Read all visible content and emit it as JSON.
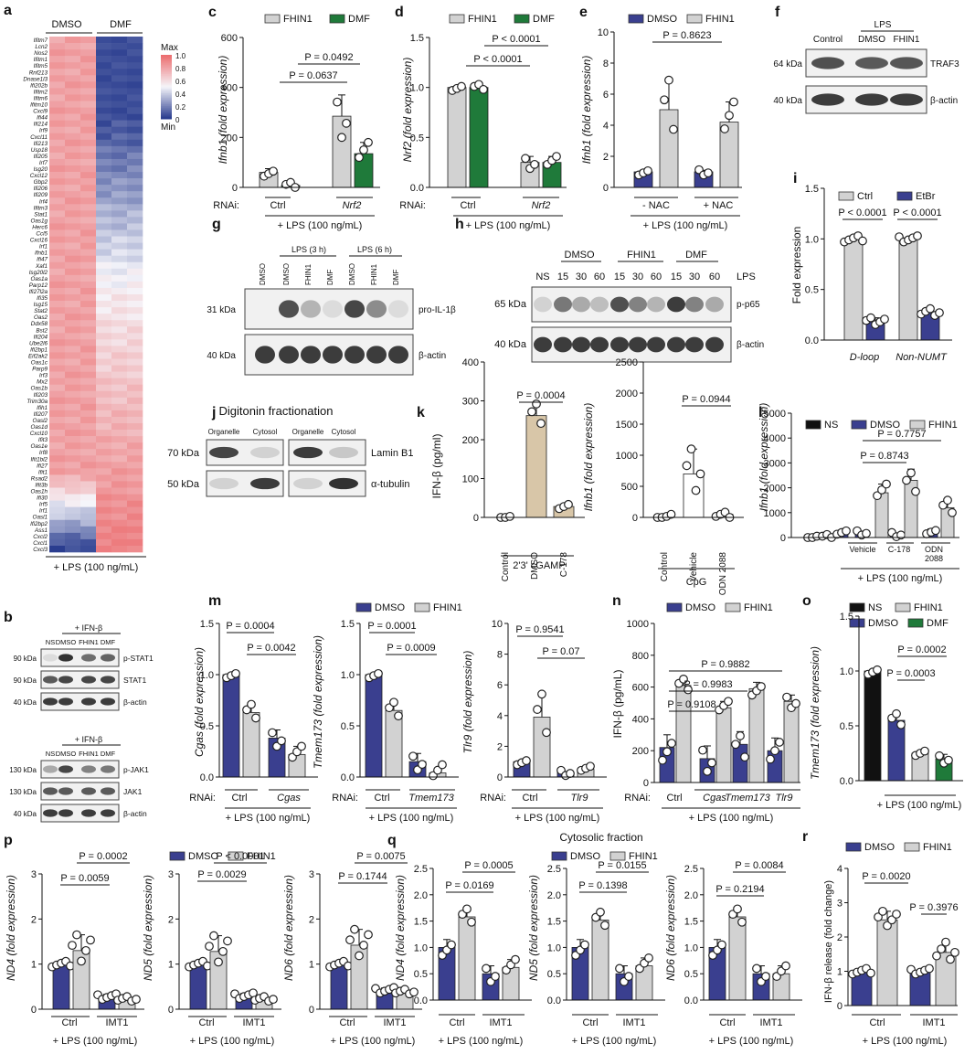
{
  "colors": {
    "navy": "#3a3f8f",
    "grey": "#d2d2d2",
    "green": "#1f7a3a",
    "tan": "#d8c6a8",
    "black": "#111111",
    "pink": "#f08080",
    "blue": "#2a3d8f"
  },
  "common": {
    "lps": "+ LPS (100 ng/mL)",
    "rnai": "RNAi:",
    "ctrl": "Ctrl",
    "imt1": "IMT1",
    "kda31": "31 kDa",
    "kda40": "40 kDa",
    "kda64": "64 kDa",
    "kda65": "65 kDa",
    "kda70": "70 kDa",
    "kda50": "50 kDa",
    "kda90": "90 kDa",
    "kda130": "130 kDa",
    "bactin": "β-actin"
  },
  "panel_labels": {
    "a": "a",
    "b": "b",
    "c": "c",
    "d": "d",
    "e": "e",
    "f": "f",
    "g": "g",
    "h": "h",
    "i": "i",
    "j": "j",
    "k": "k",
    "l": "l",
    "m": "m",
    "n": "n",
    "o": "o",
    "p": "p",
    "q": "q",
    "r": "r"
  },
  "heatmap": {
    "col_groups": [
      "DMSO",
      "DMF"
    ],
    "legend": {
      "max_label": "Max",
      "min_label": "Min",
      "ticks": [
        "1.0",
        "0.8",
        "0.6",
        "0.4",
        "0.2",
        "0"
      ]
    },
    "genes": [
      "Ifitm7",
      "Lcn2",
      "Nos2",
      "Ifitm1",
      "Ifitm5",
      "Rnf213",
      "Dnase1l3",
      "Ifi202b",
      "Ifitm2",
      "Ifitm6",
      "Ifitm10",
      "Cxcl9",
      "Ifi44",
      "Ifi214",
      "Irf9",
      "Cxcl11",
      "Ifi213",
      "Usp18",
      "Ifi205",
      "Irf7",
      "Isg20",
      "Cxcl12",
      "Gbp2",
      "Ifi206",
      "Ifi209",
      "Irf4",
      "Ifitm3",
      "Stat1",
      "Oas1g",
      "Herc6",
      "Ccl5",
      "Cxcl16",
      "Irf1",
      "Ifnb1",
      "Ifi47",
      "Xaf1",
      "Isg20l2",
      "Oas1a",
      "Parp12",
      "Ifi27l2a",
      "Ifi35",
      "Isg15",
      "Stat2",
      "Oas2",
      "Ddx58",
      "Bst2",
      "Ifi204",
      "Ube2l6",
      "Ifi2bp1",
      "Eif2ak2",
      "Oas1c",
      "Parp9",
      "Irf3",
      "Mx2",
      "Oas1b",
      "Ifi203",
      "Trim30a",
      "Ifih1",
      "Ifi207",
      "Oasl2",
      "Oas1d",
      "Cxcl10",
      "Ifit3",
      "Oas1e",
      "Irf8",
      "Ifit1bl2",
      "Ifi27",
      "Ifit1",
      "Rsad2",
      "Ifit3b",
      "Oas1h",
      "Ifi30",
      "Irf5",
      "Irf1",
      "Oasl1",
      "Ifi2bp2",
      "Ass1",
      "Cxcl2",
      "Cxcl1",
      "Cxcl3"
    ],
    "footer": "+ LPS (100 ng/mL)"
  },
  "blot_b": {
    "top_header": "+ IFN-β",
    "top_lanes": [
      "NS",
      "DMSO",
      "FHIN1",
      "DMF"
    ],
    "top_rows": [
      {
        "kda": "90 kDa",
        "label": "p-STAT1"
      },
      {
        "kda": "90 kDa",
        "label": "STAT1"
      },
      {
        "kda": "40 kDa",
        "label": "β-actin"
      }
    ],
    "bot_header": "+ IFN-β",
    "bot_lanes": [
      "NS",
      "DMSO",
      "FHIN1",
      "DMF"
    ],
    "bot_rows": [
      {
        "kda": "130 kDa",
        "label": "p-JAK1"
      },
      {
        "kda": "130 kDa",
        "label": "JAK1"
      },
      {
        "kda": "40 kDa",
        "label": "β-actin"
      }
    ]
  },
  "blot_f": {
    "header": "LPS",
    "lanes": [
      "Control",
      "DMSO",
      "FHIN1"
    ],
    "rows": [
      {
        "kda": "64 kDa",
        "label": "TRAF3"
      },
      {
        "kda": "40 kDa",
        "label": "β-actin"
      }
    ]
  },
  "blot_g": {
    "group_labels": [
      "LPS (3 h)",
      "LPS (6 h)"
    ],
    "lanes": [
      "DMSO",
      "DMSO",
      "FHIN1",
      "DMF",
      "DMSO",
      "FHIN1",
      "DMF"
    ],
    "rows": [
      {
        "kda": "31 kDa",
        "label": "pro-IL-1β"
      },
      {
        "kda": "40 kDa",
        "label": "β-actin"
      }
    ]
  },
  "blot_h": {
    "groups": [
      "DMSO",
      "FHIN1",
      "DMF"
    ],
    "lanes": [
      "NS",
      "15",
      "30",
      "60",
      "15",
      "30",
      "60",
      "15",
      "30",
      "60"
    ],
    "lps_label": "LPS",
    "rows": [
      {
        "kda": "65 kDa",
        "label": "p-p65"
      },
      {
        "kda": "40 kDa",
        "label": "β-actin"
      }
    ]
  },
  "blot_j": {
    "title": "Digitonin fractionation",
    "lanes": [
      "Organelle",
      "Cytosol",
      "Organelle",
      "Cytosol"
    ],
    "rows": [
      {
        "kda": "70 kDa",
        "label": "Lamin B1"
      },
      {
        "kda": "50 kDa",
        "label": "α-tubulin"
      }
    ]
  },
  "chart_data": [
    {
      "id": "c",
      "type": "bar",
      "ylabel": "Ifnb1 (fold expression)",
      "ylim": [
        0,
        600
      ],
      "yticks": [
        0,
        200,
        400,
        600
      ],
      "legend": [
        "FHIN1",
        "DMF"
      ],
      "groups": [
        "Ctrl",
        "Nrf2"
      ],
      "series": [
        {
          "name": "FHIN1",
          "values": [
            60,
            285
          ]
        },
        {
          "name": "DMF",
          "values": [
            8,
            135
          ]
        }
      ],
      "pvalues": [
        "P = 0.0637",
        "P = 0.0492"
      ]
    },
    {
      "id": "d",
      "type": "bar",
      "ylabel": "Nrf2 (fold expression)",
      "ylim": [
        0,
        1.5
      ],
      "yticks": [
        0.0,
        0.5,
        1.0,
        1.5
      ],
      "legend": [
        "FHIN1",
        "DMF"
      ],
      "groups": [
        "Ctrl",
        "Nrf2"
      ],
      "series": [
        {
          "name": "FHIN1",
          "values": [
            1.0,
            0.25
          ]
        },
        {
          "name": "DMF",
          "values": [
            1.0,
            0.25
          ]
        }
      ],
      "pvalues": [
        "P < 0.0001",
        "P < 0.0001"
      ]
    },
    {
      "id": "e",
      "type": "bar",
      "ylabel": "Ifnb1 (fold expression)",
      "ylim": [
        0,
        10
      ],
      "yticks": [
        0,
        2,
        4,
        6,
        8,
        10
      ],
      "legend": [
        "DMSO",
        "FHIN1"
      ],
      "groups": [
        "- NAC",
        "+ NAC"
      ],
      "series": [
        {
          "name": "DMSO",
          "values": [
            1.0,
            1.0
          ]
        },
        {
          "name": "FHIN1",
          "values": [
            5.0,
            4.2
          ]
        }
      ],
      "pvalues": [
        "P = 0.8623"
      ]
    },
    {
      "id": "i",
      "type": "bar",
      "ylabel": "Fold expression",
      "ylim": [
        0,
        1.5
      ],
      "yticks": [
        0.0,
        0.5,
        1.0,
        1.5
      ],
      "legend": [
        "Ctrl",
        "EtBr"
      ],
      "groups": [
        "D-loop",
        "Non-NUMT"
      ],
      "series": [
        {
          "name": "Ctrl",
          "values": [
            1.0,
            1.0
          ]
        },
        {
          "name": "EtBr",
          "values": [
            0.18,
            0.27
          ]
        }
      ],
      "pvalues": [
        "P < 0.0001",
        "P < 0.0001"
      ]
    },
    {
      "id": "k1",
      "type": "bar",
      "ylabel": "IFN-β (pg/ml)",
      "ylim": [
        0,
        400
      ],
      "yticks": [
        0,
        100,
        200,
        300,
        400
      ],
      "categories": [
        "Control",
        "DMSO",
        "C-178"
      ],
      "values": [
        0,
        262,
        28
      ],
      "xgroup": "2'3' cGAMP",
      "pvalues": [
        "P = 0.0004"
      ]
    },
    {
      "id": "k2",
      "type": "bar",
      "ylabel": "Ifnb1 (fold expression)",
      "ylim": [
        0,
        2500
      ],
      "yticks": [
        0,
        500,
        1000,
        1500,
        2000,
        2500
      ],
      "categories": [
        "Control",
        "Vehicle",
        "ODN 2088"
      ],
      "values": [
        0,
        700,
        50
      ],
      "xgroup": "CpG",
      "pvalues": [
        "P = 0.0944"
      ]
    },
    {
      "id": "l",
      "type": "bar",
      "ylabel": "Ifnb1 (fold expression)",
      "ylim": [
        0,
        5000
      ],
      "yticks": [
        0,
        1000,
        2000,
        3000,
        4000,
        5000
      ],
      "legend": [
        "NS",
        "DMSO",
        "FHIN1"
      ],
      "groups": [
        "Vehicle",
        "C-178",
        "ODN 2088"
      ],
      "values": {
        "NS": [
          20
        ],
        "DMSO": [
          200,
          100,
          250
        ],
        "FHIN1": [
          1800,
          2300,
          1200
        ]
      },
      "pvalues": [
        "P = 0.8743",
        "P = 0.7757"
      ]
    },
    {
      "id": "m1",
      "type": "bar",
      "ylabel": "Cgas (fold expression)",
      "ylim": [
        0,
        1.5
      ],
      "yticks": [
        0.0,
        0.5,
        1.0,
        1.5
      ],
      "legend": [
        "DMSO",
        "FHIN1"
      ],
      "groups": [
        "Ctrl",
        "Cgas"
      ],
      "series": [
        {
          "name": "DMSO",
          "values": [
            1.0,
            0.38
          ]
        },
        {
          "name": "FHIN1",
          "values": [
            0.63,
            0.22
          ]
        }
      ],
      "pvalues": [
        "P = 0.0004",
        "P = 0.0042"
      ]
    },
    {
      "id": "m2",
      "type": "bar",
      "ylabel": "Tmem173 (fold expression)",
      "ylim": [
        0,
        1.5
      ],
      "yticks": [
        0.0,
        0.5,
        1.0,
        1.5
      ],
      "groups": [
        "Ctrl",
        "Tmem173"
      ],
      "series": [
        {
          "name": "DMSO",
          "values": [
            1.0,
            0.15
          ]
        },
        {
          "name": "FHIN1",
          "values": [
            0.65,
            0.04
          ]
        }
      ],
      "pvalues": [
        "P = 0.0001",
        "P = 0.0009"
      ]
    },
    {
      "id": "m3",
      "type": "bar",
      "ylabel": "Tlr9 (fold expression)",
      "ylim": [
        0,
        10
      ],
      "yticks": [
        0,
        2,
        4,
        6,
        8,
        10
      ],
      "groups": [
        "Ctrl",
        "Tlr9"
      ],
      "series": [
        {
          "name": "DMSO",
          "values": [
            1.0,
            0.3
          ]
        },
        {
          "name": "FHIN1",
          "values": [
            3.9,
            0.5
          ]
        }
      ],
      "pvalues": [
        "P = 0.9541",
        "P = 0.07"
      ]
    },
    {
      "id": "n",
      "type": "bar",
      "ylabel": "IFN-β (pg/mL)",
      "ylim": [
        0,
        1000
      ],
      "yticks": [
        0,
        200,
        400,
        600,
        800,
        1000
      ],
      "legend": [
        "DMSO",
        "FHIN1"
      ],
      "groups": [
        "Ctrl",
        "Cgas",
        "Tmem173",
        "Tlr9"
      ],
      "series": [
        {
          "name": "DMSO",
          "values": [
            220,
            150,
            240,
            200
          ]
        },
        {
          "name": "FHIN1",
          "values": [
            610,
            470,
            590,
            510
          ]
        }
      ],
      "pvalues": [
        "P = 0.9108",
        "P = 0.9983",
        "P = 0.9882"
      ]
    },
    {
      "id": "o",
      "type": "bar",
      "ylabel": "Tmem173 (fold expression)",
      "ylim": [
        0,
        1.5
      ],
      "yticks": [
        0.0,
        0.5,
        1.0,
        1.5
      ],
      "legend": [
        "NS",
        "DMSO",
        "FHIN1",
        "DMF"
      ],
      "categories": [
        "NS",
        "DMSO",
        "FHIN1",
        "DMF"
      ],
      "values": [
        1.0,
        0.55,
        0.25,
        0.2
      ],
      "pvalues": [
        "P = 0.0003",
        "P = 0.0002"
      ]
    },
    {
      "id": "p1",
      "type": "bar",
      "ylabel": "ND4 (fold expression)",
      "ylim": [
        0,
        3
      ],
      "yticks": [
        0,
        1,
        2,
        3
      ],
      "legend": [
        "DMSO",
        "FHIN1"
      ],
      "groups": [
        "Ctrl",
        "IMT1"
      ],
      "series": [
        {
          "name": "DMSO",
          "values": [
            1.0,
            0.28
          ]
        },
        {
          "name": "FHIN1",
          "values": [
            1.3,
            0.22
          ]
        }
      ],
      "pvalues": [
        "P = 0.0059",
        "P = 0.0002"
      ]
    },
    {
      "id": "p2",
      "type": "bar",
      "ylabel": "ND5 (fold expression)",
      "ylim": [
        0,
        3
      ],
      "yticks": [
        0,
        1,
        2,
        3
      ],
      "groups": [
        "Ctrl",
        "IMT1"
      ],
      "series": [
        {
          "name": "DMSO",
          "values": [
            1.0,
            0.3
          ]
        },
        {
          "name": "FHIN1",
          "values": [
            1.28,
            0.22
          ]
        }
      ],
      "pvalues": [
        "P = 0.0029",
        "P < 0.0001"
      ]
    },
    {
      "id": "p3",
      "type": "bar",
      "ylabel": "ND6 (fold expression)",
      "ylim": [
        0,
        3
      ],
      "yticks": [
        0,
        1,
        2,
        3
      ],
      "groups": [
        "Ctrl",
        "IMT1"
      ],
      "series": [
        {
          "name": "DMSO",
          "values": [
            1.0,
            0.42
          ]
        },
        {
          "name": "FHIN1",
          "values": [
            1.42,
            0.38
          ]
        }
      ],
      "pvalues": [
        "P = 0.1744",
        "P = 0.0075"
      ]
    },
    {
      "id": "q1",
      "type": "bar",
      "title": "Cytosolic fraction",
      "ylabel": "ND4 (fold expression)",
      "ylim": [
        0,
        2.5
      ],
      "yticks": [
        0.0,
        0.5,
        1.0,
        1.5,
        2.0,
        2.5
      ],
      "legend": [
        "DMSO",
        "FHIN1"
      ],
      "groups": [
        "Ctrl",
        "IMT1"
      ],
      "series": [
        {
          "name": "DMSO",
          "values": [
            1.0,
            0.5
          ]
        },
        {
          "name": "FHIN1",
          "values": [
            1.58,
            0.62
          ]
        }
      ],
      "pvalues": [
        "P = 0.0169",
        "P = 0.0005"
      ]
    },
    {
      "id": "q2",
      "type": "bar",
      "ylabel": "ND5 (fold expression)",
      "ylim": [
        0,
        2.5
      ],
      "yticks": [
        0.0,
        0.5,
        1.0,
        1.5,
        2.0,
        2.5
      ],
      "groups": [
        "Ctrl",
        "IMT1"
      ],
      "series": [
        {
          "name": "DMSO",
          "values": [
            1.0,
            0.5
          ]
        },
        {
          "name": "FHIN1",
          "values": [
            1.52,
            0.65
          ]
        }
      ],
      "pvalues": [
        "P = 0.1398",
        "P = 0.0155"
      ]
    },
    {
      "id": "q3",
      "type": "bar",
      "ylabel": "ND6 (fold expression)",
      "ylim": [
        0,
        2.5
      ],
      "yticks": [
        0.0,
        0.5,
        1.0,
        1.5,
        2.0,
        2.5
      ],
      "groups": [
        "Ctrl",
        "IMT1"
      ],
      "series": [
        {
          "name": "DMSO",
          "values": [
            1.0,
            0.5
          ]
        },
        {
          "name": "FHIN1",
          "values": [
            1.58,
            0.5
          ]
        }
      ],
      "pvalues": [
        "P = 0.2194",
        "P = 0.0084"
      ]
    },
    {
      "id": "r",
      "type": "bar",
      "ylabel": "IFN-β release (fold change)",
      "ylim": [
        0,
        4
      ],
      "yticks": [
        0,
        1,
        2,
        3,
        4
      ],
      "legend": [
        "DMSO",
        "FHIN1"
      ],
      "groups": [
        "Ctrl",
        "IMT1"
      ],
      "series": [
        {
          "name": "DMSO",
          "values": [
            1.0,
            1.0
          ]
        },
        {
          "name": "FHIN1",
          "values": [
            2.5,
            1.55
          ]
        }
      ],
      "pvalues": [
        "P = 0.0020",
        "P = 0.3976"
      ]
    }
  ]
}
